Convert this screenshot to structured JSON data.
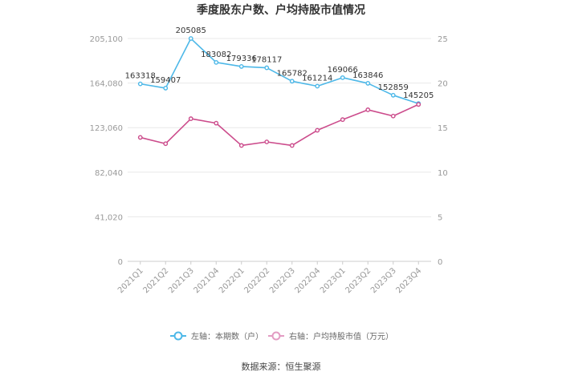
{
  "chart_data": {
    "type": "line",
    "title": "季度股东户数、户均持股市值情况",
    "categories": [
      "2021Q1",
      "2021Q2",
      "2021Q3",
      "2021Q4",
      "2022Q1",
      "2022Q2",
      "2022Q3",
      "2022Q4",
      "2023Q1",
      "2023Q2",
      "2023Q3",
      "2023Q4"
    ],
    "left_axis": {
      "ylim": [
        0,
        205100
      ],
      "ticks": [
        "0",
        "41,020",
        "82,040",
        "123,060",
        "164,080",
        "205,100"
      ]
    },
    "right_axis": {
      "ylim": [
        0,
        25
      ],
      "ticks": [
        "0",
        "5",
        "10",
        "15",
        "20",
        "25"
      ]
    },
    "series": [
      {
        "name": "左轴：本期数（户）",
        "axis": "left",
        "color": "#4db8e8",
        "values": [
          163318,
          159407,
          205085,
          183082,
          179336,
          178117,
          165782,
          161214,
          169066,
          163846,
          152859,
          145205
        ],
        "labels": [
          "163318",
          "159407",
          "205085",
          "183082",
          "179336",
          "178117",
          "165782",
          "161214",
          "169066",
          "163846",
          "152859",
          "145205"
        ]
      },
      {
        "name": "右轴：户均持股市值（万元）",
        "axis": "right",
        "color": "#cc4c8c",
        "values": [
          13.9,
          13.2,
          16.0,
          15.5,
          13.0,
          13.4,
          13.0,
          14.7,
          15.9,
          17.0,
          16.3,
          17.6
        ]
      }
    ],
    "grid": true,
    "legend_position": "bottom"
  },
  "source": "数据来源：恒生聚源"
}
